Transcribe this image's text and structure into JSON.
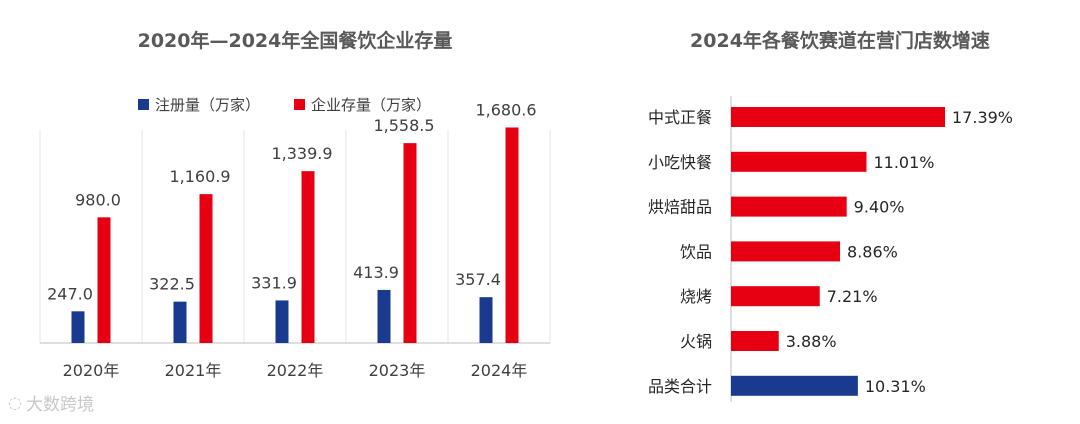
{
  "source_watermark": "大数跨境",
  "chart_data": [
    {
      "type": "bar",
      "title": "2020年—2024年全国餐饮企业存量",
      "categories": [
        "2020年",
        "2021年",
        "2022年",
        "2023年",
        "2024年"
      ],
      "series": [
        {
          "name": "注册量（万家）",
          "color": "#1a3a8f",
          "values": [
            247.0,
            322.5,
            331.9,
            413.9,
            357.4
          ],
          "labels": [
            "247.0",
            "322.5",
            "331.9",
            "413.9",
            "357.4"
          ]
        },
        {
          "name": "企业存量（万家）",
          "color": "#e60012",
          "values": [
            980.0,
            1160.9,
            1339.9,
            1558.5,
            1680.6
          ],
          "labels": [
            "980.0",
            "1,160.9",
            "1,339.9",
            "1,558.5",
            "1,680.6"
          ]
        }
      ],
      "ylim": [
        0,
        1700
      ],
      "grid": false,
      "legend": "top"
    },
    {
      "type": "bar",
      "orientation": "horizontal",
      "title": "2024年各餐饮赛道在营门店数增速",
      "categories": [
        "中式正餐",
        "小吃快餐",
        "烘焙甜品",
        "饮品",
        "烧烤",
        "火锅",
        "品类合计"
      ],
      "values": [
        17.39,
        11.01,
        9.4,
        8.86,
        7.21,
        3.88,
        10.31
      ],
      "labels": [
        "17.39%",
        "11.01%",
        "9.40%",
        "8.86%",
        "7.21%",
        "3.88%",
        "10.31%"
      ],
      "colors": [
        "#e60012",
        "#e60012",
        "#e60012",
        "#e60012",
        "#e60012",
        "#e60012",
        "#1a3a8f"
      ],
      "unit": "%"
    }
  ]
}
